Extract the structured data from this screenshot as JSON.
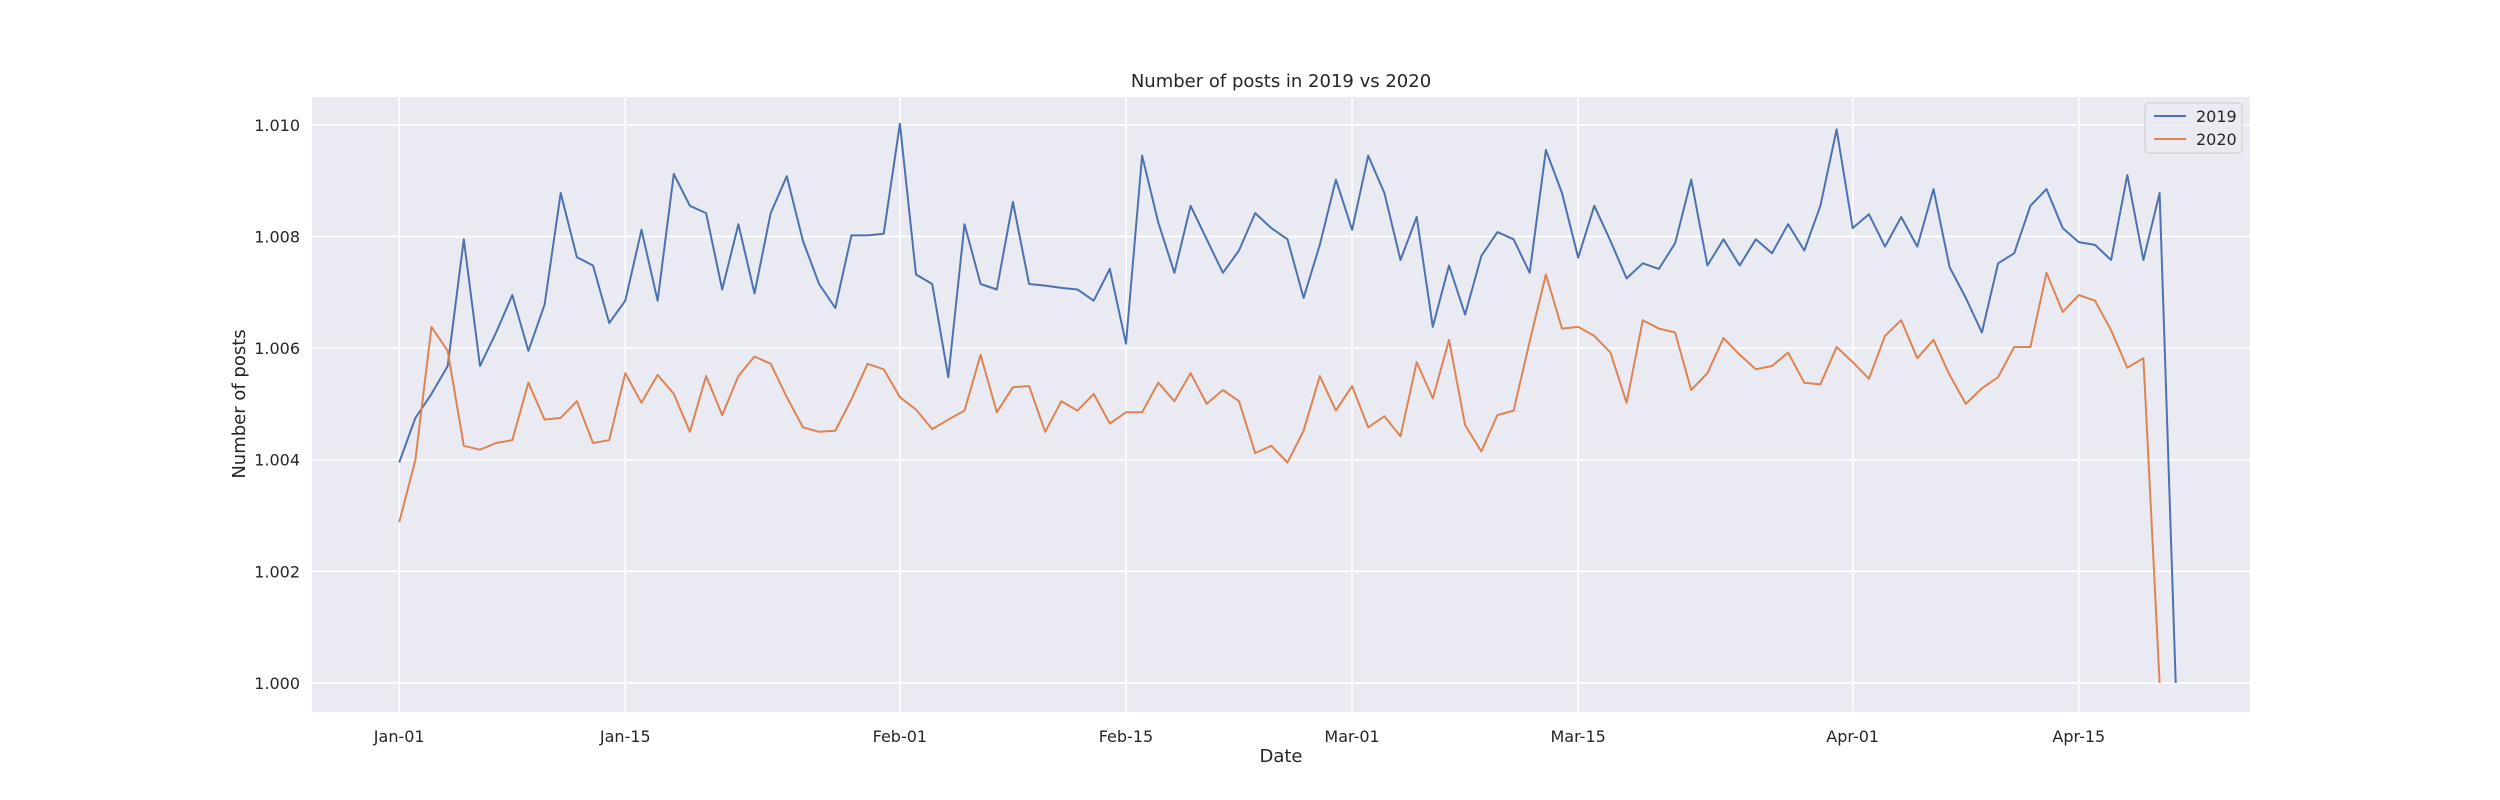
{
  "chart_data": {
    "type": "line",
    "title": "Number of posts in 2019 vs 2020",
    "xlabel": "Date",
    "ylabel": "Number of posts",
    "x_ticks": [
      "Jan-01",
      "Jan-15",
      "Feb-01",
      "Feb-15",
      "Mar-01",
      "Mar-15",
      "Apr-01",
      "Apr-15"
    ],
    "x_tick_days": [
      0,
      14,
      31,
      45,
      59,
      73,
      90,
      104
    ],
    "y_ticks": [
      "1.000",
      "1.002",
      "1.004",
      "1.006",
      "1.008",
      "1.010"
    ],
    "y_tick_values": [
      1.0,
      1.002,
      1.004,
      1.006,
      1.008,
      1.01
    ],
    "ylim": [
      0.99948,
      1.0105
    ],
    "xlim_days": [
      -5.4,
      114.6
    ],
    "grid": true,
    "legend_position": "top-right",
    "background_color": "#eaeaf2",
    "grid_color": "#ffffff",
    "series": [
      {
        "name": "2019",
        "color": "#4c72b0",
        "values": [
          1.00395,
          1.00475,
          1.00518,
          1.00568,
          1.00795,
          1.00568,
          1.00628,
          1.00695,
          1.00595,
          1.00678,
          1.00878,
          1.00763,
          1.00748,
          1.00645,
          1.00685,
          1.00812,
          1.00685,
          1.00912,
          1.00855,
          1.00842,
          1.00705,
          1.00822,
          1.00698,
          1.00842,
          1.00908,
          1.00792,
          1.00715,
          1.00672,
          1.00802,
          1.00802,
          1.00805,
          1.01002,
          1.00732,
          1.00715,
          1.00548,
          1.00822,
          1.00715,
          1.00705,
          1.00862,
          1.00715,
          1.00712,
          1.00708,
          1.00705,
          1.00685,
          1.00742,
          1.00608,
          1.00945,
          1.00825,
          1.00735,
          1.00855,
          1.00795,
          1.00735,
          1.00775,
          1.00842,
          1.00815,
          1.00795,
          1.0069,
          1.00785,
          1.00902,
          1.00812,
          1.00945,
          1.00878,
          1.00758,
          1.00835,
          1.00638,
          1.00748,
          1.0066,
          1.00765,
          1.00808,
          1.00795,
          1.00735,
          1.00955,
          1.00878,
          1.00762,
          1.00855,
          1.00792,
          1.00725,
          1.00752,
          1.00742,
          1.00788,
          1.00902,
          1.00748,
          1.00795,
          1.00748,
          1.00795,
          1.0077,
          1.00822,
          1.00775,
          1.00855,
          1.00992,
          1.00815,
          1.0084,
          1.00782,
          1.00835,
          1.00782,
          1.00885,
          1.00745,
          1.0069,
          1.00628,
          1.00752,
          1.0077,
          1.00855,
          1.00885,
          1.00815,
          1.0079,
          1.00785,
          1.00758,
          1.0091,
          1.00758,
          1.00878,
          1.0
        ]
      },
      {
        "name": "2020",
        "color": "#dd8452",
        "values": [
          1.00288,
          1.004,
          1.00638,
          1.00595,
          1.00425,
          1.00418,
          1.0043,
          1.00435,
          1.00538,
          1.00472,
          1.00475,
          1.00505,
          1.0043,
          1.00435,
          1.00555,
          1.00502,
          1.00552,
          1.00518,
          1.0045,
          1.0055,
          1.0048,
          1.0055,
          1.00585,
          1.00572,
          1.00512,
          1.00458,
          1.0045,
          1.00452,
          1.00508,
          1.00572,
          1.00562,
          1.00512,
          1.0049,
          1.00455,
          1.00472,
          1.00488,
          1.00588,
          1.00485,
          1.0053,
          1.00532,
          1.0045,
          1.00505,
          1.00488,
          1.00518,
          1.00465,
          1.00485,
          1.00485,
          1.00538,
          1.00505,
          1.00555,
          1.005,
          1.00525,
          1.00505,
          1.00412,
          1.00425,
          1.00395,
          1.00452,
          1.0055,
          1.00488,
          1.00532,
          1.00458,
          1.00478,
          1.00442,
          1.00575,
          1.0051,
          1.00615,
          1.00462,
          1.00415,
          1.0048,
          1.00488,
          1.00612,
          1.00732,
          1.00635,
          1.00638,
          1.00622,
          1.00592,
          1.00502,
          1.0065,
          1.00635,
          1.00628,
          1.00525,
          1.00555,
          1.00618,
          1.00588,
          1.00562,
          1.00568,
          1.00592,
          1.00538,
          1.00535,
          1.00602,
          1.00575,
          1.00545,
          1.00622,
          1.0065,
          1.00582,
          1.00615,
          1.00552,
          1.005,
          1.00528,
          1.00548,
          1.00602,
          1.00602,
          1.00735,
          1.00665,
          1.00695,
          1.00685,
          1.00632,
          1.00565,
          1.00582,
          1.0
        ]
      }
    ]
  }
}
